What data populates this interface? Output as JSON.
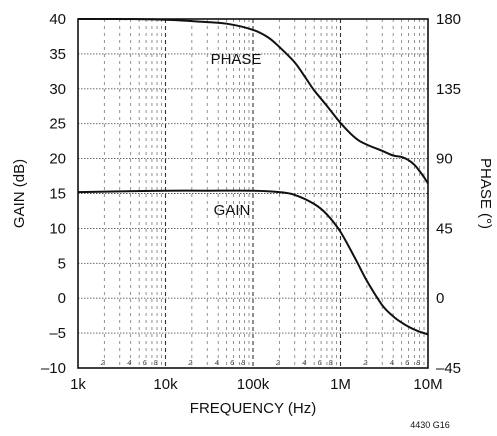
{
  "chart_data": {
    "type": "line",
    "xlabel": "FREQUENCY (Hz)",
    "ylabel": "GAIN (dB)",
    "y2label": "PHASE (°)",
    "xscale": "log",
    "xlim": [
      1000,
      10000000
    ],
    "ylim": [
      -10,
      40
    ],
    "y2lim": [
      -45,
      180
    ],
    "grid": true,
    "xticks": [
      1000,
      10000,
      100000,
      1000000,
      10000000
    ],
    "xticklabels": [
      "1k",
      "10k",
      "100k",
      "1M",
      "10M"
    ],
    "yticks": [
      -10,
      -5,
      0,
      5,
      10,
      15,
      20,
      25,
      30,
      35,
      40
    ],
    "yticklabels": [
      "–10",
      "–5",
      "0",
      "5",
      "10",
      "15",
      "20",
      "25",
      "30",
      "35",
      "40"
    ],
    "y2ticks": [
      -45,
      0,
      45,
      90,
      135,
      180
    ],
    "y2ticklabels": [
      "–45",
      "0",
      "45",
      "90",
      "135",
      "180"
    ],
    "minor_tick_labels": [
      "2",
      "4",
      "6",
      "8"
    ],
    "series": [
      {
        "name": "PHASE",
        "axis": "right",
        "x": [
          1000,
          3000,
          10000,
          30000,
          50000,
          100000,
          150000,
          200000,
          300000,
          400000,
          500000,
          700000,
          1000000,
          1500000,
          2000000,
          3000000,
          4000000,
          5000000,
          6000000,
          7000000,
          8000000,
          9000000,
          10000000
        ],
        "values": [
          180,
          180,
          179.5,
          178,
          177,
          173,
          168,
          162,
          152,
          142,
          134,
          124,
          113,
          103,
          99,
          95,
          92,
          91,
          89,
          86,
          82,
          78,
          74
        ]
      },
      {
        "name": "GAIN",
        "axis": "left",
        "x": [
          1000,
          3000,
          10000,
          30000,
          100000,
          200000,
          300000,
          500000,
          700000,
          1000000,
          1500000,
          2000000,
          3000000,
          4000000,
          5000000,
          6000000,
          7000000,
          8000000,
          9000000,
          10000000
        ],
        "values": [
          15.2,
          15.3,
          15.4,
          15.4,
          15.4,
          15.2,
          14.8,
          13.5,
          12,
          9.5,
          5.5,
          2.5,
          -1,
          -2.6,
          -3.5,
          -4.1,
          -4.5,
          -4.8,
          -5,
          -5.2
        ]
      }
    ],
    "annotations": {
      "phase_label": "PHASE",
      "gain_label": "GAIN",
      "figure_id": "4430 G16"
    }
  }
}
